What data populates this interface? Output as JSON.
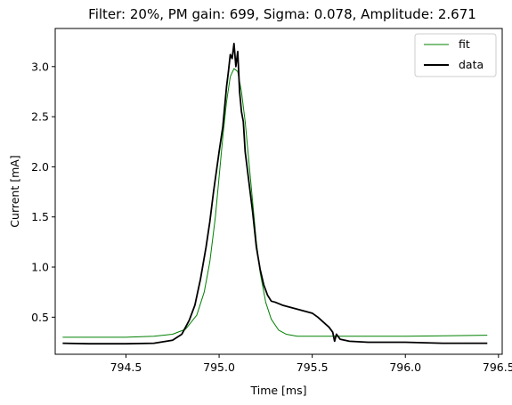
{
  "chart_data": {
    "type": "line",
    "title": "Filter: 20%, PM gain: 699, Sigma: 0.078, Amplitude: 2.671",
    "xlabel": "Time [ms]",
    "ylabel": "Current [mA]",
    "xlim": [
      794.12,
      796.52
    ],
    "ylim": [
      0.13,
      3.38
    ],
    "xticks": [
      794.5,
      795.0,
      795.5,
      796.0,
      796.5
    ],
    "xtick_labels": [
      "794.5",
      "795.0",
      "795.5",
      "796.0",
      "796.5"
    ],
    "yticks": [
      0.5,
      1.0,
      1.5,
      2.0,
      2.5,
      3.0
    ],
    "ytick_labels": [
      "0.5",
      "1.0",
      "1.5",
      "2.0",
      "2.5",
      "3.0"
    ],
    "grid": false,
    "legend_position": "top-right",
    "series": [
      {
        "name": "fit",
        "color": "#008000",
        "x": [
          794.16,
          794.3,
          794.5,
          794.65,
          794.75,
          794.82,
          794.88,
          794.92,
          794.95,
          794.98,
          795.0,
          795.02,
          795.04,
          795.06,
          795.08,
          795.1,
          795.12,
          795.14,
          795.16,
          795.18,
          795.2,
          795.22,
          795.25,
          795.28,
          795.32,
          795.36,
          795.42,
          795.5,
          795.7,
          796.0,
          796.44
        ],
        "y": [
          0.3,
          0.3,
          0.3,
          0.31,
          0.33,
          0.38,
          0.52,
          0.75,
          1.05,
          1.5,
          1.9,
          2.3,
          2.65,
          2.9,
          2.98,
          2.95,
          2.75,
          2.45,
          2.05,
          1.65,
          1.25,
          0.95,
          0.65,
          0.48,
          0.37,
          0.33,
          0.31,
          0.31,
          0.31,
          0.31,
          0.32
        ]
      },
      {
        "name": "data",
        "color": "#000000",
        "x": [
          794.16,
          794.3,
          794.5,
          794.65,
          794.75,
          794.8,
          794.84,
          794.87,
          794.9,
          794.93,
          794.95,
          794.97,
          795.0,
          795.02,
          795.04,
          795.05,
          795.06,
          795.07,
          795.08,
          795.09,
          795.1,
          795.11,
          795.12,
          795.13,
          795.14,
          795.16,
          795.18,
          795.2,
          795.22,
          795.24,
          795.26,
          795.28,
          795.3,
          795.34,
          795.38,
          795.42,
          795.46,
          795.5,
          795.53,
          795.56,
          795.59,
          795.61,
          795.62,
          795.63,
          795.65,
          795.7,
          795.8,
          796.0,
          796.2,
          796.44
        ],
        "y": [
          0.24,
          0.235,
          0.235,
          0.24,
          0.27,
          0.33,
          0.47,
          0.62,
          0.88,
          1.2,
          1.45,
          1.75,
          2.15,
          2.4,
          2.8,
          2.95,
          3.12,
          3.08,
          3.23,
          3.0,
          3.15,
          2.75,
          2.55,
          2.45,
          2.15,
          1.85,
          1.55,
          1.2,
          0.98,
          0.82,
          0.72,
          0.66,
          0.65,
          0.62,
          0.6,
          0.58,
          0.56,
          0.54,
          0.5,
          0.45,
          0.4,
          0.35,
          0.26,
          0.33,
          0.28,
          0.26,
          0.25,
          0.25,
          0.24,
          0.24
        ]
      }
    ]
  }
}
